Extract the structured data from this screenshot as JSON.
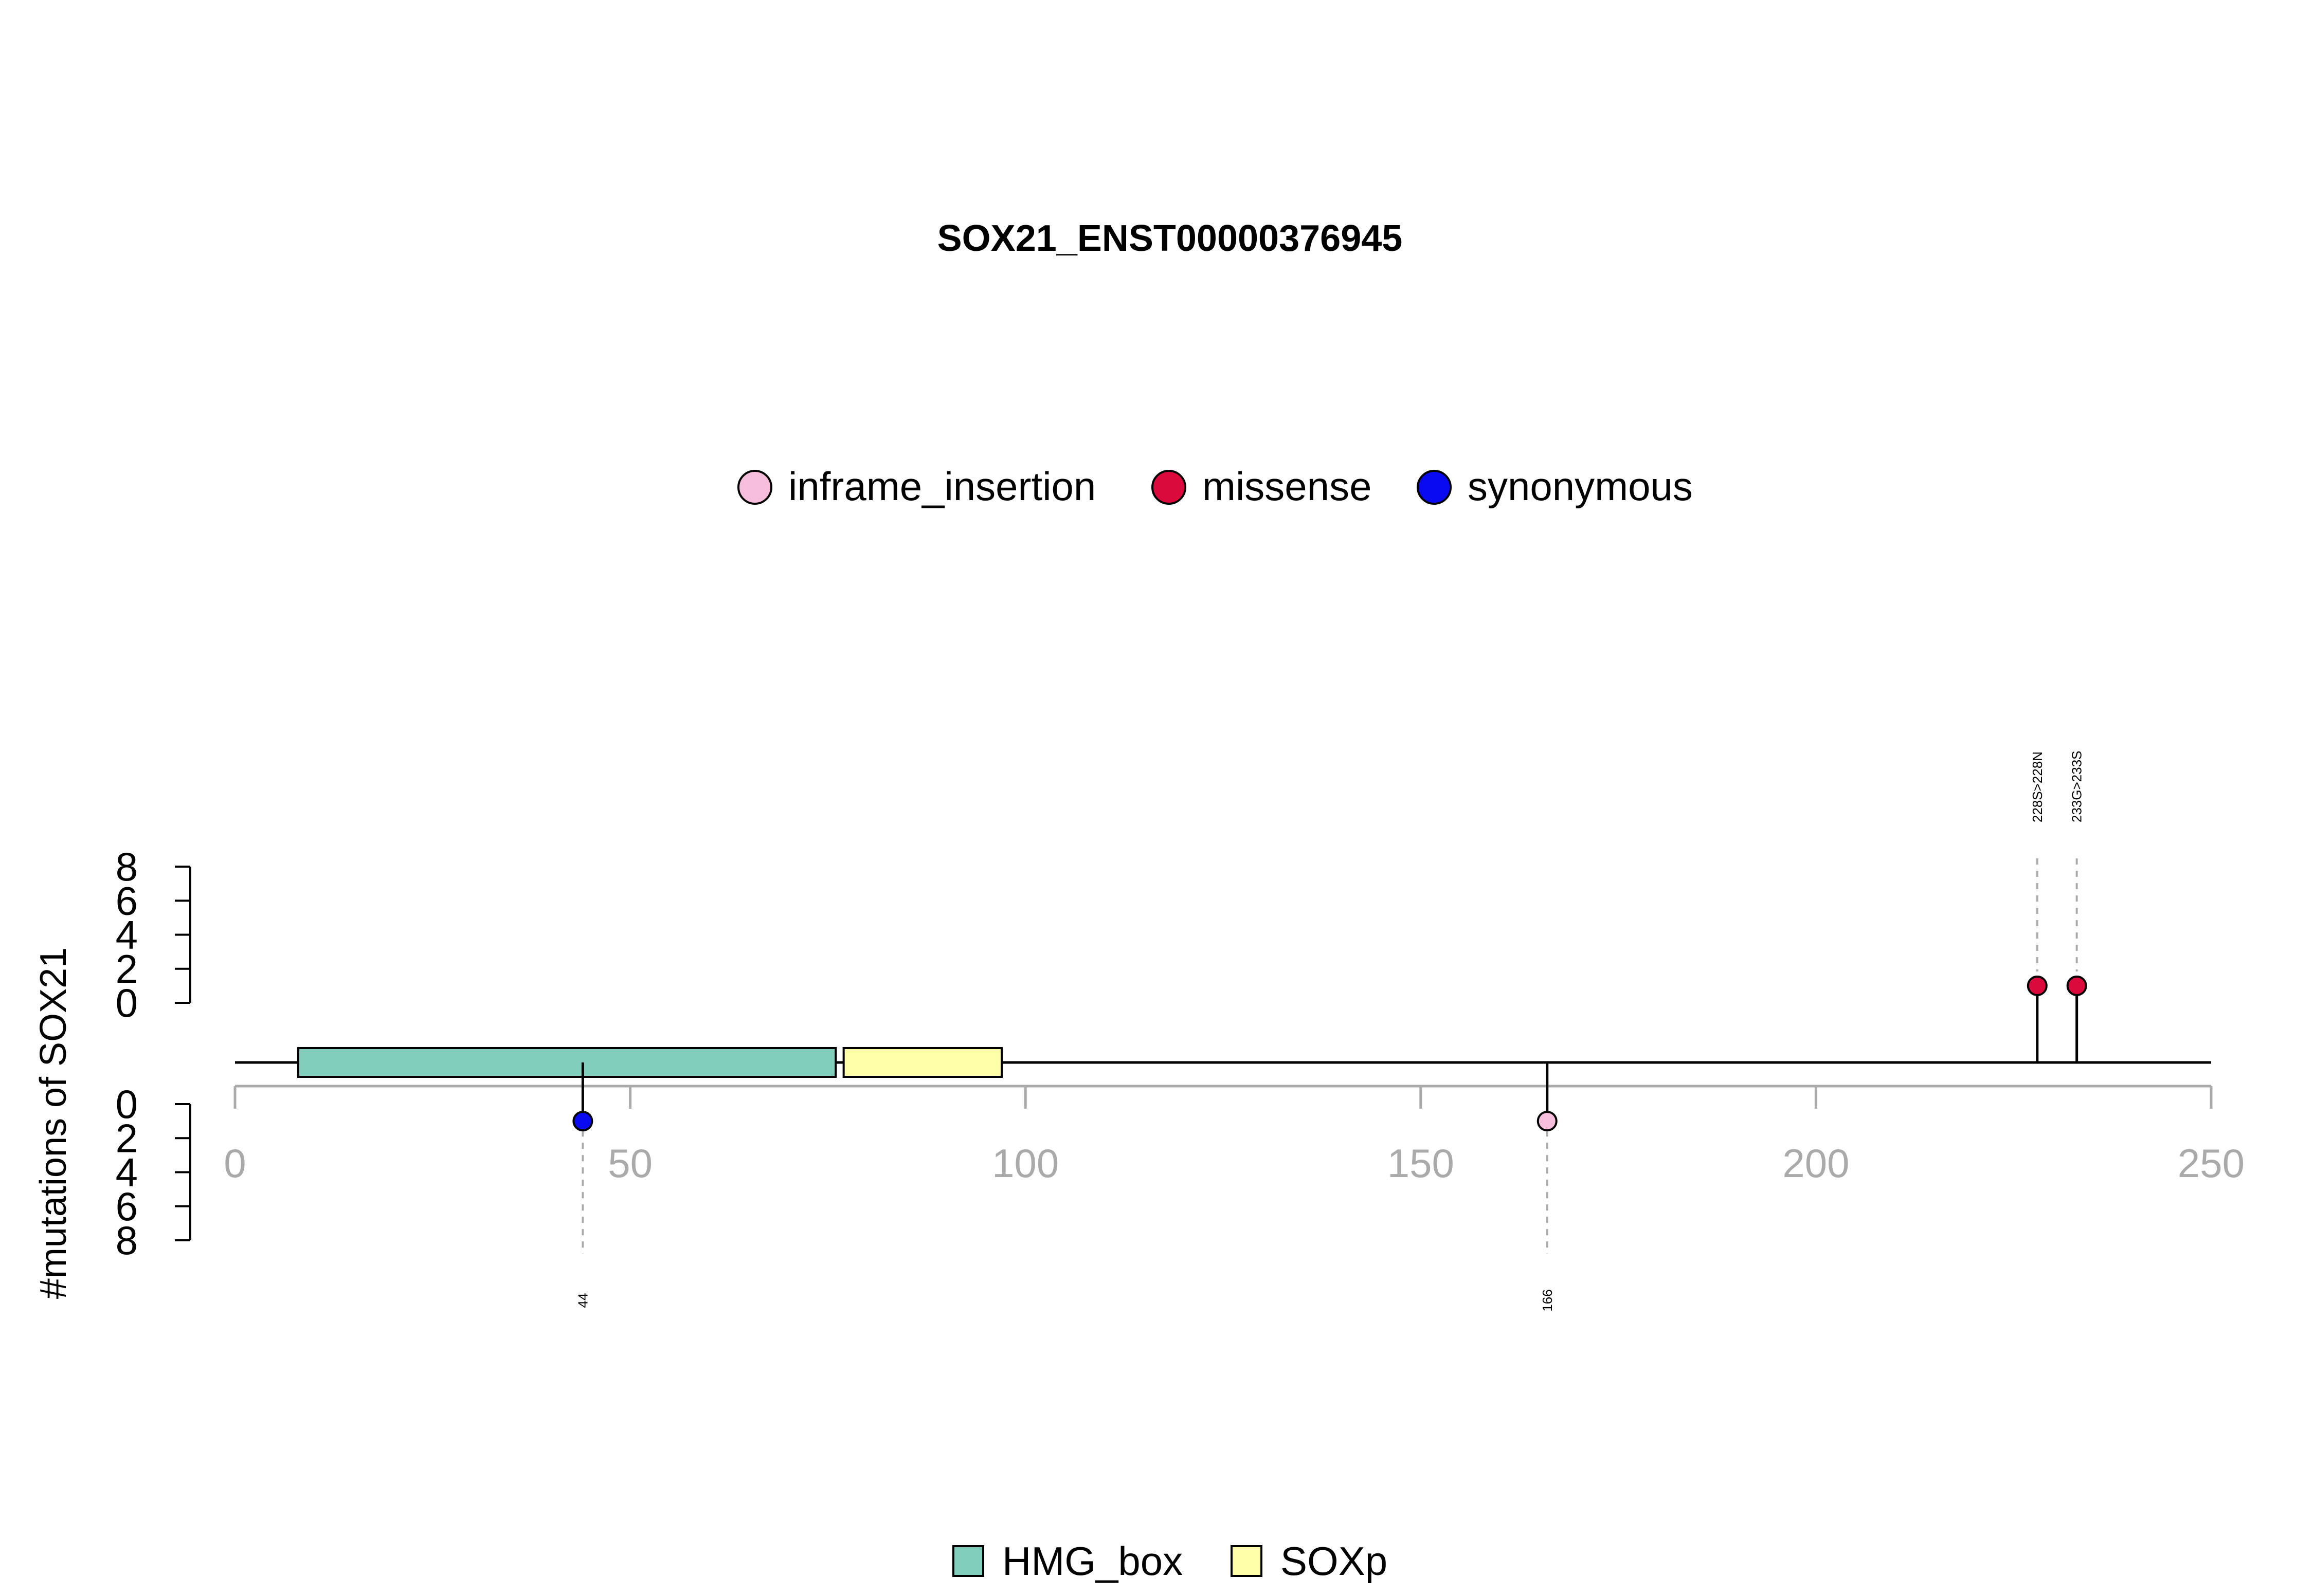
{
  "chart_data": {
    "type": "lollipop",
    "title": "SOX21_ENST00000376945",
    "ylabel": "#mutations of SOX21",
    "xlim": [
      0,
      250
    ],
    "x_ticks": [
      0,
      50,
      100,
      150,
      200,
      250
    ],
    "y_ticks": [
      0,
      2,
      4,
      6,
      8
    ],
    "ylim": [
      0,
      8
    ],
    "mutation_legend": [
      {
        "name": "inframe_insertion",
        "color": "#F7BEDC"
      },
      {
        "name": "missense",
        "color": "#DC0A3C"
      },
      {
        "name": "synonymous",
        "color": "#0A0AF0"
      }
    ],
    "domain_legend": [
      {
        "name": "HMG_box",
        "color": "#80CDBB"
      },
      {
        "name": "SOXp",
        "color": "#FFFFAA"
      }
    ],
    "domains": [
      {
        "name": "HMG_box",
        "start": 8,
        "end": 76
      },
      {
        "name": "SOXp",
        "start": 77,
        "end": 97
      }
    ],
    "mutations_top": [
      {
        "position": 228,
        "count": 1,
        "type": "missense",
        "label": "228S>228N"
      },
      {
        "position": 233,
        "count": 1,
        "type": "missense",
        "label": "233G>233S"
      }
    ],
    "mutations_bottom": [
      {
        "position": 44,
        "count": 1,
        "type": "synonymous",
        "label": "44"
      },
      {
        "position": 166,
        "count": 1,
        "type": "inframe_insertion",
        "label": "166"
      }
    ]
  }
}
